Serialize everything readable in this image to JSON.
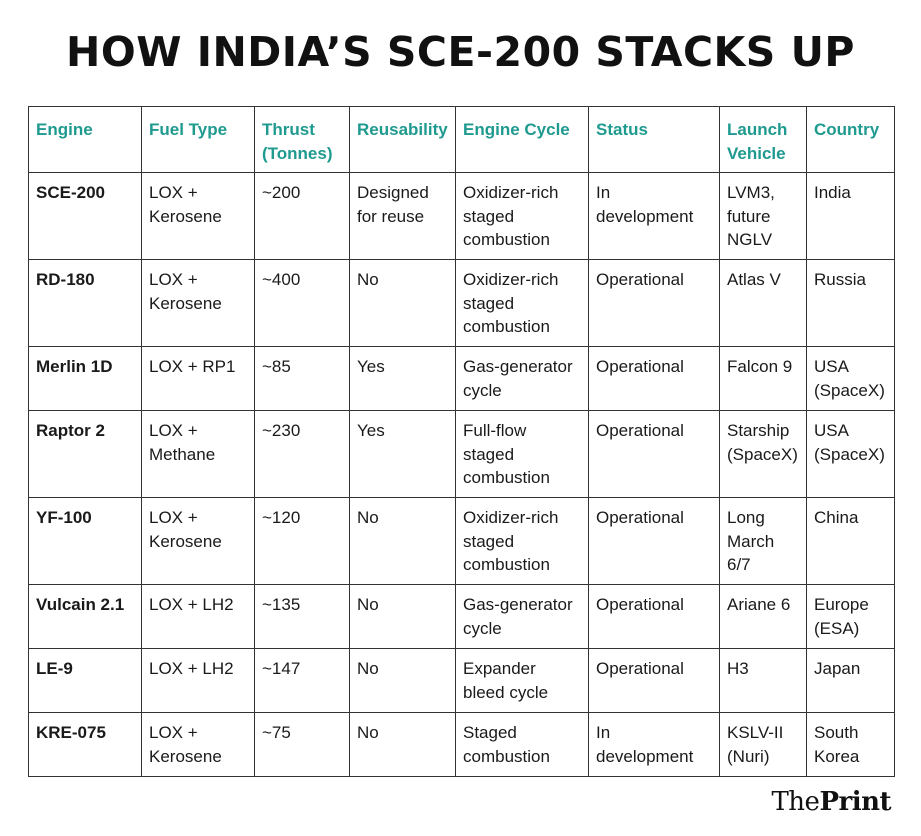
{
  "title": "HOW INDIA’S SCE-200 STACKS UP",
  "logo": {
    "the": "The",
    "print": "Print"
  },
  "columns": [
    "Engine",
    "Fuel Type",
    "Thrust (Tonnes)",
    "Reusability",
    "Engine Cycle",
    "Status",
    "Launch Vehicle",
    "Country"
  ],
  "rows": [
    [
      "SCE-200",
      "LOX + Kerosene",
      "~200",
      "Designed for reuse",
      "Oxidizer-rich staged combustion",
      "In development",
      "LVM3, future NGLV",
      "India"
    ],
    [
      "RD-180",
      "LOX + Kerosene",
      "~400",
      "No",
      "Oxidizer-rich staged combustion",
      "Operational",
      "Atlas V",
      "Russia"
    ],
    [
      "Merlin 1D",
      "LOX + RP1",
      "~85",
      "Yes",
      "Gas-generator cycle",
      "Operational",
      "Falcon 9",
      "USA (SpaceX)"
    ],
    [
      "Raptor 2",
      "LOX + Methane",
      "~230",
      "Yes",
      "Full-flow staged combustion",
      "Operational",
      "Starship (SpaceX)",
      "USA (SpaceX)"
    ],
    [
      "YF-100",
      "LOX + Kerosene",
      "~120",
      "No",
      "Oxidizer-rich staged combustion",
      "Operational",
      "Long March 6/7",
      "China"
    ],
    [
      "Vulcain 2.1",
      "LOX + LH2",
      "~135",
      "No",
      "Gas-generator cycle",
      "Operational",
      "Ariane 6",
      "Europe (ESA)"
    ],
    [
      "LE-9",
      "LOX + LH2",
      "~147",
      "No",
      "Expander bleed cycle",
      "Operational",
      "H3",
      "Japan"
    ],
    [
      "KRE-075",
      "LOX + Kerosene",
      "~75",
      "No",
      "Staged combustion",
      "In development",
      "KSLV-II (Nuri)",
      "South Korea"
    ]
  ],
  "colors": {
    "header_text": "#1f9a8f",
    "border": "#333333",
    "text": "#1a1a1a"
  }
}
